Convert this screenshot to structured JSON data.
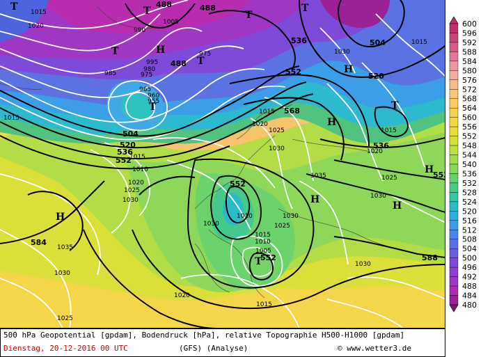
{
  "caption": {
    "line1": "500 hPa Geopotential [gpdam], Bodendruck [hPa], relative Topographie H500-H1000 [gpdam]",
    "date": "Dienstag, 20-12-2016  00 UTC",
    "model": "(GFS)  (Analyse)",
    "copyright": "© www.wetter3.de"
  },
  "legend": {
    "units": "gpdam",
    "values": [
      "600",
      "596",
      "592",
      "588",
      "584",
      "580",
      "576",
      "572",
      "568",
      "564",
      "560",
      "556",
      "552",
      "548",
      "544",
      "540",
      "536",
      "532",
      "528",
      "524",
      "520",
      "516",
      "512",
      "508",
      "504",
      "500",
      "496",
      "492",
      "488",
      "484",
      "480"
    ],
    "colors": [
      "#b8326e",
      "#c8447c",
      "#d65a8a",
      "#e27896",
      "#ec96a0",
      "#f2ae9a",
      "#f6bc88",
      "#f8c676",
      "#f8cc62",
      "#f6d24e",
      "#f2d83e",
      "#e8dc36",
      "#d6e036",
      "#bee040",
      "#a2dc4c",
      "#84d85a",
      "#66d26a",
      "#48cc84",
      "#34c6a6",
      "#2cbcc8",
      "#30aee0",
      "#3c9ce8",
      "#4a86e6",
      "#5a70e2",
      "#6c5cde",
      "#7e4ad8",
      "#9040d0",
      "#a036c4",
      "#ae2cb6",
      "#9a2296",
      "#7c1874"
    ]
  },
  "map": {
    "geopotential_labels": [
      {
        "text": "488"
      },
      {
        "text": "488"
      },
      {
        "text": "488"
      },
      {
        "text": "504"
      },
      {
        "text": "520"
      },
      {
        "text": "536"
      },
      {
        "text": "552"
      },
      {
        "text": "504"
      },
      {
        "text": "520"
      },
      {
        "text": "536"
      },
      {
        "text": "552"
      },
      {
        "text": "568"
      },
      {
        "text": "536"
      },
      {
        "text": "552"
      },
      {
        "text": "552"
      },
      {
        "text": "552"
      },
      {
        "text": "584"
      },
      {
        "text": "588"
      },
      {
        "text": "552"
      }
    ],
    "isobar_labels": [
      {
        "text": "1015"
      },
      {
        "text": "1020"
      },
      {
        "text": "990"
      },
      {
        "text": "1005"
      },
      {
        "text": "975"
      },
      {
        "text": "985"
      },
      {
        "text": "995"
      },
      {
        "text": "980"
      },
      {
        "text": "975"
      },
      {
        "text": "965"
      },
      {
        "text": "960"
      },
      {
        "text": "955"
      },
      {
        "text": "1010"
      },
      {
        "text": "1015"
      },
      {
        "text": "1020"
      },
      {
        "text": "1025"
      },
      {
        "text": "1030"
      },
      {
        "text": "1035"
      },
      {
        "text": "1030"
      },
      {
        "text": "1025"
      },
      {
        "text": "1015"
      },
      {
        "text": "1020"
      },
      {
        "text": "1025"
      },
      {
        "text": "1030"
      },
      {
        "text": "1035"
      },
      {
        "text": "1030"
      },
      {
        "text": "1015"
      },
      {
        "text": "1010"
      },
      {
        "text": "1005"
      },
      {
        "text": "1010"
      },
      {
        "text": "1015"
      },
      {
        "text": "1020"
      },
      {
        "text": "1030"
      },
      {
        "text": "1025"
      },
      {
        "text": "1030"
      },
      {
        "text": "1015"
      },
      {
        "text": "1020"
      },
      {
        "text": "1030"
      },
      {
        "text": "1015"
      },
      {
        "text": "1025"
      },
      {
        "text": "1030"
      },
      {
        "text": "1015"
      }
    ],
    "pressure_centers": [
      {
        "text": "T"
      },
      {
        "text": "T"
      },
      {
        "text": "T"
      },
      {
        "text": "H"
      },
      {
        "text": "T"
      },
      {
        "text": "T"
      },
      {
        "text": "T"
      },
      {
        "text": "H"
      },
      {
        "text": "H"
      },
      {
        "text": "H"
      },
      {
        "text": "H"
      },
      {
        "text": "T"
      },
      {
        "text": "T"
      },
      {
        "text": "H"
      },
      {
        "text": "T"
      },
      {
        "text": "H"
      },
      {
        "text": "T"
      }
    ]
  }
}
